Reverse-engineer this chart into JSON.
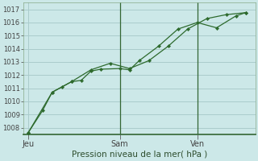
{
  "xlabel": "Pression niveau de la mer( hPa )",
  "bg_color": "#cce8e8",
  "grid_color": "#aacccc",
  "line_color": "#2d6a2d",
  "ylim": [
    1007.5,
    1017.5
  ],
  "yticks": [
    1008,
    1009,
    1010,
    1011,
    1012,
    1013,
    1014,
    1015,
    1016,
    1017
  ],
  "xlim": [
    0,
    24
  ],
  "xtick_positions": [
    0.5,
    10,
    18
  ],
  "xtick_labels": [
    "Jeu",
    "Sam",
    "Ven"
  ],
  "vlines": [
    10,
    18
  ],
  "line1_x": [
    0.5,
    2,
    3,
    4,
    5,
    6,
    7,
    8,
    10,
    11,
    12,
    14,
    16,
    18,
    20,
    22,
    23
  ],
  "line1_y": [
    1007.6,
    1009.3,
    1010.7,
    1011.1,
    1011.5,
    1011.6,
    1012.3,
    1012.45,
    1012.5,
    1012.4,
    1013.1,
    1014.2,
    1015.5,
    1016.0,
    1015.6,
    1016.5,
    1016.75
  ],
  "line2_x": [
    0.5,
    3,
    5,
    7,
    9,
    11,
    13,
    15,
    17,
    19,
    21,
    23
  ],
  "line2_y": [
    1007.6,
    1010.7,
    1011.5,
    1012.4,
    1012.9,
    1012.5,
    1013.1,
    1014.2,
    1015.5,
    1016.3,
    1016.6,
    1016.75
  ]
}
